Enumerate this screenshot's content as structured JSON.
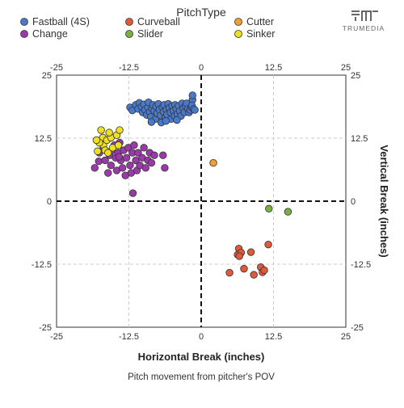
{
  "legend": {
    "title": "PitchType"
  },
  "branding": {
    "logo_text": "TRUMEDIA"
  },
  "caption": "Pitch movement from pitcher's POV",
  "chart_data": {
    "type": "scatter",
    "title": "",
    "xlabel": "Horizontal Break (inches)",
    "ylabel": "Vertical Break (inches)",
    "xlim": [
      -25,
      25
    ],
    "ylim": [
      -25,
      25
    ],
    "x_ticks": [
      "-25",
      "-12.5",
      "0",
      "12.5",
      "25"
    ],
    "y_ticks": [
      "25",
      "12.5",
      "0",
      "-12.5",
      "-25"
    ],
    "grid": true,
    "zero_lines": "dashed",
    "legend_position": "top",
    "series": [
      {
        "name": "Fastball (4S)",
        "color": "#4a79c9",
        "points": [
          [
            -12.3,
            18.6
          ],
          [
            -11.9,
            18.0
          ],
          [
            -11.3,
            19.1
          ],
          [
            -10.9,
            18.3
          ],
          [
            -10.7,
            19.5
          ],
          [
            -10.3,
            18.7
          ],
          [
            -10.1,
            17.6
          ],
          [
            -9.9,
            19.2
          ],
          [
            -9.7,
            18.1
          ],
          [
            -9.4,
            17.1
          ],
          [
            -9.2,
            18.6
          ],
          [
            -9.1,
            19.6
          ],
          [
            -8.9,
            17.7
          ],
          [
            -8.7,
            16.7
          ],
          [
            -8.5,
            18.4
          ],
          [
            -8.3,
            19.1
          ],
          [
            -8.1,
            17.9
          ],
          [
            -7.9,
            16.3
          ],
          [
            -7.8,
            18.8
          ],
          [
            -7.6,
            17.4
          ],
          [
            -7.4,
            19.3
          ],
          [
            -7.2,
            18.2
          ],
          [
            -7.0,
            17.0
          ],
          [
            -6.9,
            15.6
          ],
          [
            -6.7,
            18.6
          ],
          [
            -6.5,
            17.7
          ],
          [
            -6.4,
            19.1
          ],
          [
            -6.2,
            16.6
          ],
          [
            -6.0,
            18.1
          ],
          [
            -5.9,
            17.2
          ],
          [
            -5.7,
            19.3
          ],
          [
            -5.5,
            18.5
          ],
          [
            -5.3,
            17.6
          ],
          [
            -5.2,
            16.3
          ],
          [
            -5.0,
            18.9
          ],
          [
            -4.8,
            17.9
          ],
          [
            -4.6,
            16.9
          ],
          [
            -4.5,
            19.1
          ],
          [
            -4.3,
            18.3
          ],
          [
            -4.1,
            17.3
          ],
          [
            -3.9,
            18.9
          ],
          [
            -3.7,
            17.9
          ],
          [
            -3.5,
            16.9
          ],
          [
            -3.3,
            19.4
          ],
          [
            -3.1,
            18.4
          ],
          [
            -2.9,
            17.6
          ],
          [
            -2.7,
            18.9
          ],
          [
            -2.5,
            19.4
          ],
          [
            -2.3,
            18.3
          ],
          [
            -2.1,
            17.6
          ],
          [
            -1.9,
            18.1
          ],
          [
            -1.7,
            18.7
          ],
          [
            -1.5,
            20.1
          ],
          [
            -1.6,
            19.0
          ],
          [
            -1.3,
            18.3
          ],
          [
            -1.1,
            18.1
          ],
          [
            -1.5,
            21.0
          ],
          [
            -8.6,
            15.7
          ],
          [
            -6.1,
            15.9
          ],
          [
            -4.2,
            16.1
          ]
        ]
      },
      {
        "name": "Curveball",
        "color": "#e05a3a",
        "points": [
          [
            4.9,
            -14.2
          ],
          [
            6.5,
            -9.4
          ],
          [
            6.3,
            -10.6
          ],
          [
            6.9,
            -10.2
          ],
          [
            6.6,
            -10.9
          ],
          [
            7.4,
            -13.4
          ],
          [
            8.6,
            -10.1
          ],
          [
            9.1,
            -14.6
          ],
          [
            10.3,
            -13.1
          ],
          [
            10.6,
            -14.1
          ],
          [
            10.9,
            -13.7
          ],
          [
            11.6,
            -8.6
          ]
        ]
      },
      {
        "name": "Cutter",
        "color": "#f0a030",
        "points": [
          [
            2.1,
            7.6
          ]
        ]
      },
      {
        "name": "Slider",
        "color": "#7ab040",
        "points": [
          [
            11.7,
            -1.5
          ],
          [
            15.0,
            -2.1
          ]
        ]
      },
      {
        "name": "Change",
        "color": "#9a3aa8",
        "points": [
          [
            -18.4,
            6.6
          ],
          [
            -17.7,
            7.9
          ],
          [
            -17.6,
            9.6
          ],
          [
            -17.3,
            12.1
          ],
          [
            -16.9,
            10.6
          ],
          [
            -16.6,
            8.1
          ],
          [
            -16.1,
            5.6
          ],
          [
            -15.8,
            9.1
          ],
          [
            -15.6,
            7.1
          ],
          [
            -15.4,
            10.1
          ],
          [
            -15.0,
            11.1
          ],
          [
            -14.8,
            8.6
          ],
          [
            -14.6,
            6.1
          ],
          [
            -14.4,
            9.6
          ],
          [
            -14.1,
            11.6
          ],
          [
            -13.9,
            8.1
          ],
          [
            -13.6,
            6.6
          ],
          [
            -13.4,
            10.1
          ],
          [
            -13.1,
            5.1
          ],
          [
            -12.9,
            8.6
          ],
          [
            -12.6,
            10.6
          ],
          [
            -12.3,
            7.1
          ],
          [
            -12.1,
            5.6
          ],
          [
            -11.9,
            9.6
          ],
          [
            -11.6,
            11.1
          ],
          [
            -11.3,
            8.1
          ],
          [
            -11.1,
            6.1
          ],
          [
            -10.9,
            9.6
          ],
          [
            -10.6,
            7.1
          ],
          [
            -10.2,
            8.6
          ],
          [
            -9.9,
            10.6
          ],
          [
            -9.6,
            6.6
          ],
          [
            -9.2,
            8.1
          ],
          [
            -8.9,
            9.6
          ],
          [
            -8.6,
            7.6
          ],
          [
            -8.1,
            9.1
          ],
          [
            -6.6,
            9.1
          ],
          [
            -6.3,
            6.6
          ],
          [
            -11.8,
            1.6
          ],
          [
            -14.2,
            8.8
          ]
        ]
      },
      {
        "name": "Sinker",
        "color": "#eee020",
        "points": [
          [
            -17.3,
            14.1
          ],
          [
            -17.0,
            12.6
          ],
          [
            -16.9,
            11.1
          ],
          [
            -17.6,
            11.6
          ],
          [
            -16.6,
            10.1
          ],
          [
            -16.3,
            12.1
          ],
          [
            -16.1,
            9.6
          ],
          [
            -15.6,
            12.6
          ],
          [
            -15.3,
            10.6
          ],
          [
            -14.6,
            13.1
          ],
          [
            -14.3,
            11.1
          ],
          [
            -14.1,
            14.1
          ],
          [
            -15.9,
            13.6
          ],
          [
            -17.9,
            9.9
          ],
          [
            -18.1,
            12.1
          ]
        ]
      }
    ]
  }
}
